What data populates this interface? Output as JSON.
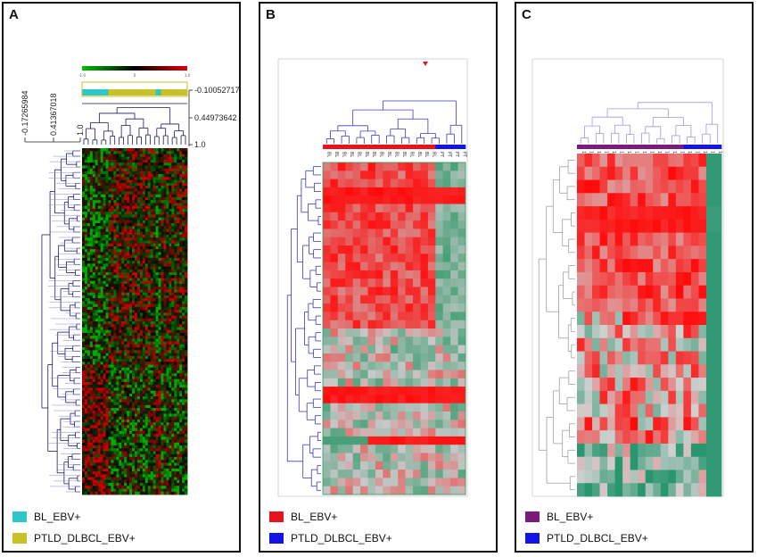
{
  "panels": [
    {
      "id": "A",
      "label": "A",
      "legend": [
        {
          "label": "BL_EBV+",
          "color": "#2ec7c9"
        },
        {
          "label": "PTLD_DLBCL_EBV+",
          "color": "#c9c227"
        }
      ],
      "scale_ticks": [
        "-1.0",
        "",
        "0",
        "",
        "1.0"
      ],
      "right_axis": [
        "-0.10052717",
        "0.44973642",
        "1.0"
      ],
      "left_axis": [
        "-0.17265984",
        "0.41367018",
        "1.0"
      ]
    },
    {
      "id": "B",
      "label": "B",
      "legend": [
        {
          "label": "BL_EBV+",
          "color": "#e8141c"
        },
        {
          "label": "PTLD_DLBCL_EBV+",
          "color": "#1414e6"
        }
      ],
      "column_labels": [
        "BL",
        "BL",
        "BL",
        "BL",
        "BL",
        "BL",
        "BL",
        "BL",
        "BL",
        "BL",
        "BL",
        "BL",
        "BL",
        "BL",
        "BL",
        "PT",
        "PT",
        "PT",
        "PT"
      ]
    },
    {
      "id": "C",
      "label": "C",
      "legend": [
        {
          "label": "BL_EBV+",
          "color": "#7a1a7a"
        },
        {
          "label": "PTLD_DLBCL_EBV+",
          "color": "#1414e6"
        }
      ]
    }
  ],
  "chart_data": [
    {
      "type": "heatmap",
      "title": "A",
      "groups": [
        "BL_EBV+",
        "PTLD_DLBCL_EBV+"
      ],
      "color_scale": {
        "low": "green",
        "mid": "black",
        "high": "red",
        "range": [
          -1.0,
          1.0
        ]
      },
      "dendrogram_axis_right": [
        -0.10052717,
        0.44973642,
        1.0
      ],
      "dendrogram_axis_left": [
        -0.17265984,
        0.41367018,
        1.0
      ]
    },
    {
      "type": "heatmap",
      "title": "B",
      "groups": [
        "BL_EBV+",
        "PTLD_DLBCL_EBV+"
      ],
      "columns": 19,
      "bl_columns": 15,
      "ptld_columns": 4,
      "rows": 40
    },
    {
      "type": "heatmap",
      "title": "C",
      "groups": [
        "BL_EBV+",
        "PTLD_DLBCL_EBV+"
      ],
      "columns": 19,
      "bl_columns": 14,
      "ptld_columns": 5,
      "rows": 26
    }
  ]
}
